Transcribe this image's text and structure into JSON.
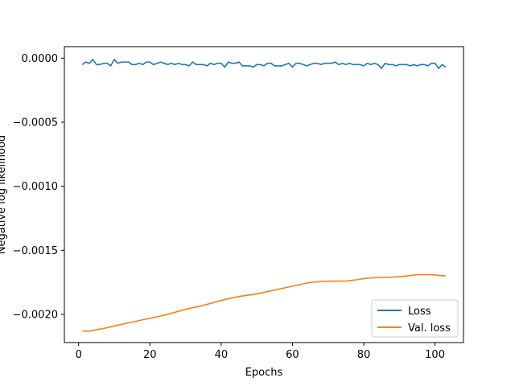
{
  "chart_data": {
    "type": "line",
    "title": "",
    "xlabel": "Epochs",
    "ylabel": "Negative log likelihood",
    "xlim": [
      -4,
      108
    ],
    "ylim": [
      -0.00222,
      9e-05
    ],
    "xticks": [
      0,
      20,
      40,
      60,
      80,
      100
    ],
    "xtick_labels": [
      "0",
      "20",
      "40",
      "60",
      "80",
      "100"
    ],
    "yticks": [
      0.0,
      -0.0005,
      -0.001,
      -0.0015,
      -0.002
    ],
    "ytick_labels": [
      "0.0000",
      "−0.0005",
      "−0.0010",
      "−0.0015",
      "−0.0020"
    ],
    "grid": false,
    "legend": "lower-right",
    "series": [
      {
        "name": "Loss",
        "color": "#1f77b4",
        "x": [
          1,
          2,
          3,
          4,
          5,
          6,
          7,
          8,
          9,
          10,
          11,
          12,
          13,
          14,
          15,
          16,
          17,
          18,
          19,
          20,
          21,
          22,
          23,
          24,
          25,
          26,
          27,
          28,
          29,
          30,
          31,
          32,
          33,
          34,
          35,
          36,
          37,
          38,
          39,
          40,
          41,
          42,
          43,
          44,
          45,
          46,
          47,
          48,
          49,
          50,
          51,
          52,
          53,
          54,
          55,
          56,
          57,
          58,
          59,
          60,
          61,
          62,
          63,
          64,
          65,
          66,
          67,
          68,
          69,
          70,
          71,
          72,
          73,
          74,
          75,
          76,
          77,
          78,
          79,
          80,
          81,
          82,
          83,
          84,
          85,
          86,
          87,
          88,
          89,
          90,
          91,
          92,
          93,
          94,
          95,
          96,
          97,
          98,
          99,
          100,
          101,
          102,
          103
        ],
        "values": [
          -5e-05,
          -3e-05,
          -4e-05,
          -1e-05,
          -5e-05,
          -5e-05,
          -4e-05,
          -4e-05,
          -6e-05,
          -1e-05,
          -4e-05,
          -3e-05,
          -3e-05,
          -3e-05,
          -5e-05,
          -5e-05,
          -4e-05,
          -5e-05,
          -3e-05,
          -3e-05,
          -5e-05,
          -4e-05,
          -3e-05,
          -4e-05,
          -5e-05,
          -4e-05,
          -5e-05,
          -4e-05,
          -5e-05,
          -5e-05,
          -6e-05,
          -3e-05,
          -5e-05,
          -5e-05,
          -5e-05,
          -6e-05,
          -4e-05,
          -5e-05,
          -4e-05,
          -4e-05,
          -7e-05,
          -3e-05,
          -4e-05,
          -4e-05,
          -3e-05,
          -6e-05,
          -6e-05,
          -6e-05,
          -7e-05,
          -5e-05,
          -5e-05,
          -6e-05,
          -4e-05,
          -4e-05,
          -6e-05,
          -6e-05,
          -6e-05,
          -5e-05,
          -4e-05,
          -7e-05,
          -4e-05,
          -4e-05,
          -5e-05,
          -6e-05,
          -5e-05,
          -4e-05,
          -4e-05,
          -5e-05,
          -4e-05,
          -4e-05,
          -4e-05,
          -3e-05,
          -5e-05,
          -4e-05,
          -5e-05,
          -4e-05,
          -5e-05,
          -5e-05,
          -5e-05,
          -6e-05,
          -4e-05,
          -5e-05,
          -4e-05,
          -5e-05,
          -8e-05,
          -4e-05,
          -5e-05,
          -5e-05,
          -6e-05,
          -5e-05,
          -5e-05,
          -5e-05,
          -6e-05,
          -5e-05,
          -6e-05,
          -5e-05,
          -5e-05,
          -6e-05,
          -4e-05,
          -4e-05,
          -8e-05,
          -5e-05,
          -7e-05
        ]
      },
      {
        "name": "Val. loss",
        "color": "#ff7f0e",
        "x": [
          1,
          3,
          5,
          7,
          10,
          15,
          20,
          25,
          30,
          35,
          40,
          45,
          50,
          55,
          60,
          65,
          70,
          75,
          78,
          80,
          85,
          88,
          92,
          95,
          99,
          103
        ],
        "values": [
          -0.00213,
          -0.00213,
          -0.00212,
          -0.00211,
          -0.00209,
          -0.00206,
          -0.00203,
          -0.002,
          -0.00196,
          -0.00193,
          -0.00189,
          -0.00186,
          -0.00184,
          -0.00181,
          -0.00178,
          -0.00175,
          -0.00174,
          -0.00174,
          -0.00173,
          -0.00172,
          -0.00171,
          -0.00171,
          -0.0017,
          -0.00169,
          -0.00169,
          -0.0017
        ]
      }
    ]
  }
}
